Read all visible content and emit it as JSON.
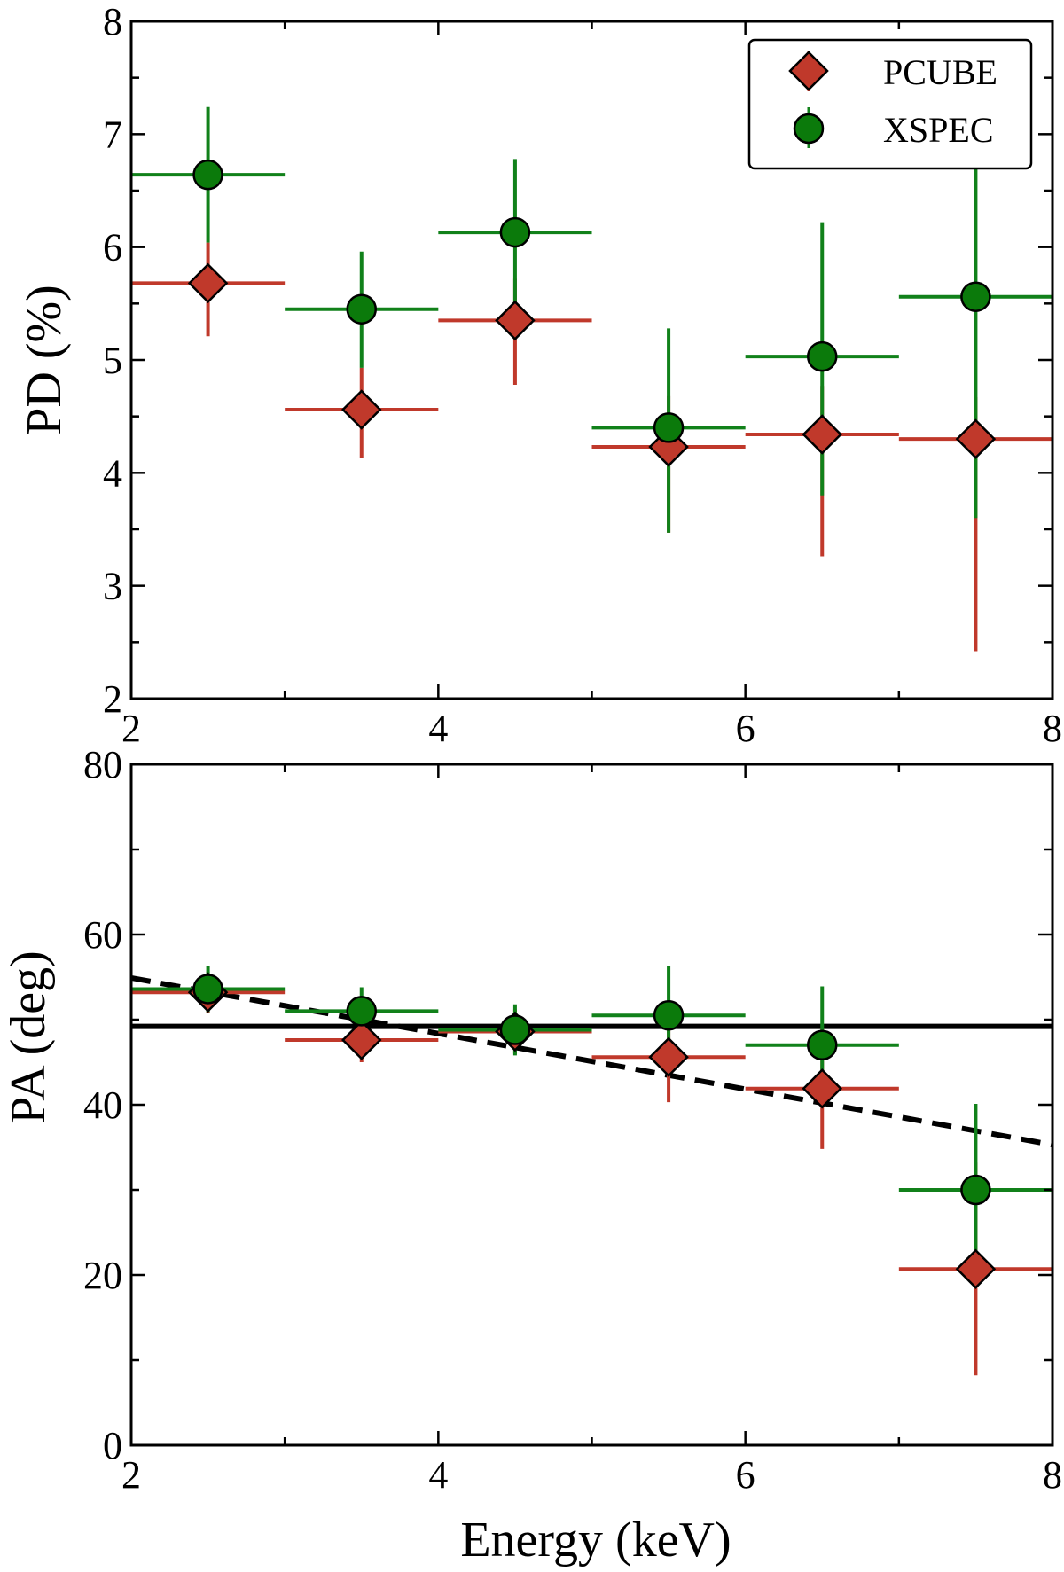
{
  "colors": {
    "pcube": "#c0392b",
    "pcube_errorbar": "#c0392b",
    "xspec": "#0b7a0b",
    "xspec_errorbar": "#11811a",
    "axes": "#000000",
    "model_lines": "#000000"
  },
  "chart_data": [
    {
      "id": "pd",
      "type": "scatter",
      "title": "",
      "xlabel": "",
      "ylabel": "PD (%)",
      "xlim": [
        2,
        8
      ],
      "ylim": [
        2,
        8
      ],
      "xticks": [
        "2",
        "4",
        "6",
        "8"
      ],
      "yticks": [
        "2",
        "3",
        "4",
        "5",
        "6",
        "7",
        "8"
      ],
      "legend_position": "top-right",
      "legend": [
        {
          "label": "PCUBE",
          "marker": "diamond",
          "series": "PCUBE"
        },
        {
          "label": "XSPEC",
          "marker": "circle",
          "series": "XSPEC"
        }
      ],
      "series": [
        {
          "name": "PCUBE",
          "marker": "diamond",
          "x": [
            2.5,
            3.5,
            4.5,
            5.5,
            6.5,
            7.5
          ],
          "xerr": [
            0.5,
            0.5,
            0.5,
            0.5,
            0.5,
            0.5
          ],
          "y": [
            5.68,
            4.56,
            5.35,
            4.23,
            4.34,
            4.3
          ],
          "yerr_low": [
            0.47,
            0.43,
            0.57,
            0.76,
            1.08,
            1.88
          ],
          "yerr_high": [
            0.36,
            0.37,
            0.37,
            0.45,
            0.43,
            0.37
          ]
        },
        {
          "name": "XSPEC",
          "marker": "circle",
          "x": [
            2.5,
            3.5,
            4.5,
            5.5,
            6.5,
            7.5
          ],
          "xerr": [
            0.5,
            0.5,
            0.5,
            0.5,
            0.5,
            0.5
          ],
          "y": [
            6.64,
            5.45,
            6.13,
            4.4,
            5.03,
            5.56
          ],
          "yerr_low": [
            0.6,
            0.52,
            0.63,
            0.93,
            1.23,
            1.96
          ],
          "yerr_high": [
            0.6,
            0.51,
            0.65,
            0.88,
            1.19,
            1.24
          ]
        }
      ]
    },
    {
      "id": "pa",
      "type": "scatter",
      "title": "",
      "xlabel": "Energy (keV)",
      "ylabel": "PA (deg)",
      "xlim": [
        2,
        8
      ],
      "ylim": [
        0,
        80
      ],
      "xticks": [
        "2",
        "4",
        "6",
        "8"
      ],
      "yticks": [
        "0",
        "20",
        "40",
        "60",
        "80"
      ],
      "series": [
        {
          "name": "PCUBE",
          "marker": "diamond",
          "x": [
            2.5,
            3.5,
            4.5,
            5.5,
            6.5,
            7.5
          ],
          "xerr": [
            0.5,
            0.5,
            0.5,
            0.5,
            0.5,
            0.5
          ],
          "y": [
            53.2,
            47.6,
            48.6,
            45.6,
            41.9,
            20.7
          ],
          "yerr_low": [
            2.4,
            2.6,
            2.6,
            5.3,
            7.1,
            12.5
          ],
          "yerr_high": [
            2.4,
            2.6,
            2.6,
            5.3,
            7.1,
            12.5
          ]
        },
        {
          "name": "XSPEC",
          "marker": "circle",
          "x": [
            2.5,
            3.5,
            4.5,
            5.5,
            6.5,
            7.5
          ],
          "xerr": [
            0.5,
            0.5,
            0.5,
            0.5,
            0.5,
            0.5
          ],
          "y": [
            53.6,
            51.0,
            48.8,
            50.5,
            47.0,
            30.0
          ],
          "yerr_low": [
            2.7,
            2.8,
            3.0,
            5.8,
            6.9,
            10.1
          ],
          "yerr_high": [
            2.7,
            2.8,
            3.0,
            5.8,
            6.9,
            10.1
          ]
        }
      ],
      "lines": [
        {
          "name": "constant-model",
          "style": "solid",
          "x": [
            2,
            8
          ],
          "y": [
            49.2,
            49.2
          ]
        },
        {
          "name": "linear-model",
          "style": "dashed",
          "x": [
            2,
            8
          ],
          "y": [
            54.9,
            35.3
          ]
        }
      ]
    }
  ]
}
